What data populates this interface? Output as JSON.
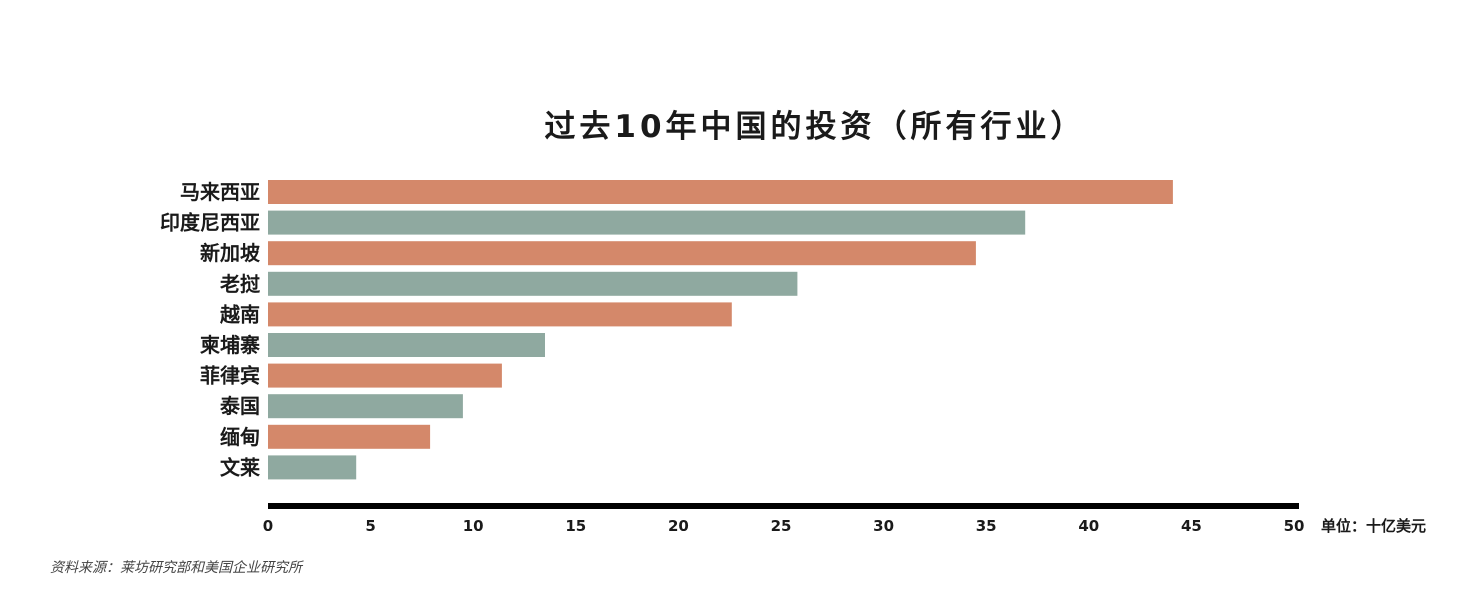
{
  "chart_data": {
    "type": "bar",
    "orientation": "horizontal",
    "title": "过去10年中国的投资（所有行业）",
    "categories": [
      "马来西亚",
      "印度尼西亚",
      "新加坡",
      "老挝",
      "越南",
      "柬埔寨",
      "菲律宾",
      "泰国",
      "缅甸",
      "文莱"
    ],
    "values": [
      44.1,
      36.9,
      34.5,
      25.8,
      22.6,
      13.5,
      11.4,
      9.5,
      7.9,
      4.3
    ],
    "bar_colors": [
      "#d4886a",
      "#8fa9a0"
    ],
    "xlim": [
      0,
      50
    ],
    "xticks": [
      0,
      5,
      10,
      15,
      20,
      25,
      30,
      35,
      40,
      45,
      50
    ],
    "xlabel": "单位：十亿美元",
    "ylabel": "",
    "grid": false,
    "legend": "none",
    "source": "资料来源：莱坊研究部和美国企业研究所"
  }
}
